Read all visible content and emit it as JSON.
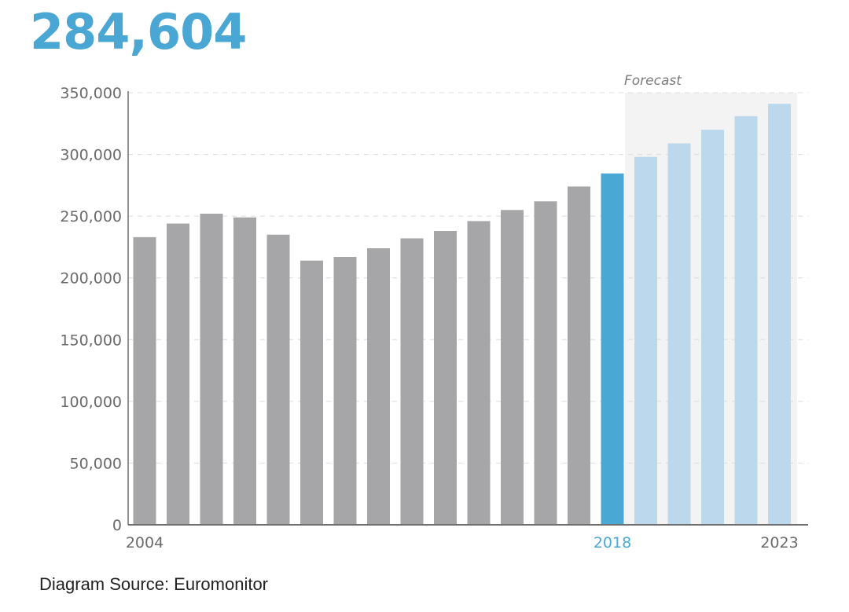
{
  "headline": {
    "value": "284,604"
  },
  "source": {
    "text": "Diagram Source: Euromonitor"
  },
  "chart_data": {
    "type": "bar",
    "title": "",
    "xlabel": "",
    "ylabel": "",
    "ylim": [
      0,
      350000
    ],
    "y_ticks": [
      0,
      50000,
      100000,
      150000,
      200000,
      250000,
      300000,
      350000
    ],
    "y_tick_labels": [
      "0",
      "50,000",
      "100,000",
      "150,000",
      "200,000",
      "250,000",
      "300,000",
      "350,000"
    ],
    "grid": "horizontal dashed",
    "categories": [
      "2004",
      "2005",
      "2006",
      "2007",
      "2008",
      "2009",
      "2010",
      "2011",
      "2012",
      "2013",
      "2014",
      "2015",
      "2016",
      "2017",
      "2018",
      "2019",
      "2020",
      "2021",
      "2022",
      "2023"
    ],
    "x_tick_labels": [
      {
        "category": "2004",
        "text": "2004",
        "highlight": false
      },
      {
        "category": "2018",
        "text": "2018",
        "highlight": true
      },
      {
        "category": "2023",
        "text": "2023",
        "highlight": false
      }
    ],
    "values": [
      233000,
      244000,
      252000,
      249000,
      235000,
      214000,
      217000,
      224000,
      232000,
      238000,
      246000,
      255000,
      262000,
      274000,
      284604,
      298000,
      309000,
      320000,
      331000,
      341000
    ],
    "bar_kind": [
      "historical",
      "historical",
      "historical",
      "historical",
      "historical",
      "historical",
      "historical",
      "historical",
      "historical",
      "historical",
      "historical",
      "historical",
      "historical",
      "historical",
      "current",
      "forecast",
      "forecast",
      "forecast",
      "forecast",
      "forecast"
    ],
    "forecast": {
      "label": "Forecast",
      "start": "2019",
      "end": "2023"
    },
    "colors": {
      "historical": "#a6a6a8",
      "current": "#4aa8d5",
      "forecast": "#bcd8ec",
      "forecast_band": "#f3f3f3",
      "axis": "#6f6f6f",
      "tick_label": "#6a6a6a",
      "highlight_label": "#4aa8d5",
      "grid": "#dcdcdc",
      "headline": "#4aa6d3"
    }
  }
}
